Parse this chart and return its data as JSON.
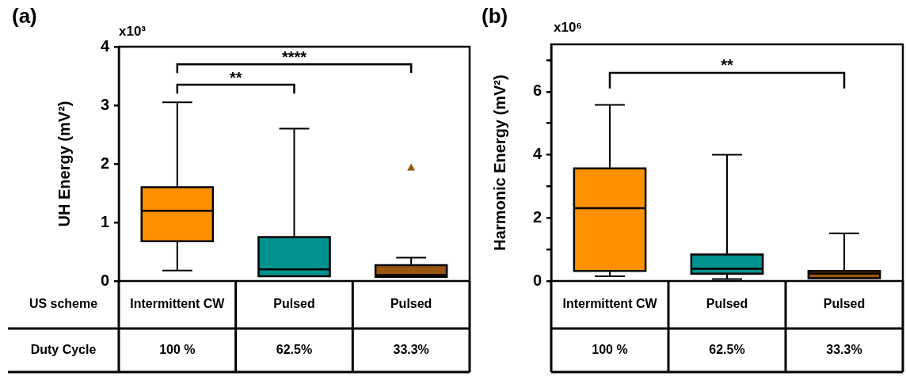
{
  "chart_data": [
    {
      "type": "box",
      "title": "(a)",
      "ylabel": "UH Energy (mV²)",
      "categories": [
        "Intermittent CW",
        "Pulsed",
        "Pulsed"
      ],
      "colors": [
        "#ff9100",
        "#00928f",
        "#99560f"
      ],
      "ylim": [
        0,
        4
      ],
      "yticks": [
        0,
        1,
        2,
        3,
        4
      ],
      "grid": false,
      "legend": false,
      "boxes": [
        {
          "low": 0.18,
          "q1": 0.68,
          "median": 1.2,
          "q3": 1.6,
          "high": 3.05
        },
        {
          "low": null,
          "q1": 0.08,
          "median": 0.2,
          "q3": 0.75,
          "high": 2.6
        },
        {
          "low": null,
          "q1": 0.07,
          "median": 0.1,
          "q3": 0.27,
          "high": 0.4,
          "outliers": [
            1.94
          ]
        }
      ],
      "annotations": [
        "x10³",
        "**",
        "****",
        "US scheme",
        "Duty Cycle",
        "100 %",
        "62.5%",
        "33.3%"
      ]
    },
    {
      "type": "box",
      "title": "(b)",
      "ylabel": "Harmonic Energy (mV²)",
      "categories": [
        "Intermittent CW",
        "Pulsed",
        "Pulsed"
      ],
      "colors": [
        "#ff9100",
        "#00928f",
        "#99560f"
      ],
      "ylim": [
        0,
        7.5
      ],
      "yticks": [
        0,
        {
          "value": 1,
          "label": null
        },
        2,
        {
          "value": 3,
          "label": null
        },
        4,
        {
          "value": 5,
          "label": null
        },
        6,
        {
          "value": 7,
          "label": null
        }
      ],
      "grid": false,
      "legend": false,
      "boxes": [
        {
          "low": 0.15,
          "q1": 0.32,
          "median": 2.31,
          "q3": 3.57,
          "high": 5.58
        },
        {
          "low": 0.06,
          "q1": 0.23,
          "median": 0.39,
          "q3": 0.84,
          "high": 4.0
        },
        {
          "low": null,
          "q1": 0.09,
          "median": 0.24,
          "q3": 0.32,
          "high": 1.51
        }
      ],
      "annotations": [
        "x10⁶",
        "**",
        "100 %",
        "62.5%",
        "33.3%"
      ]
    }
  ]
}
